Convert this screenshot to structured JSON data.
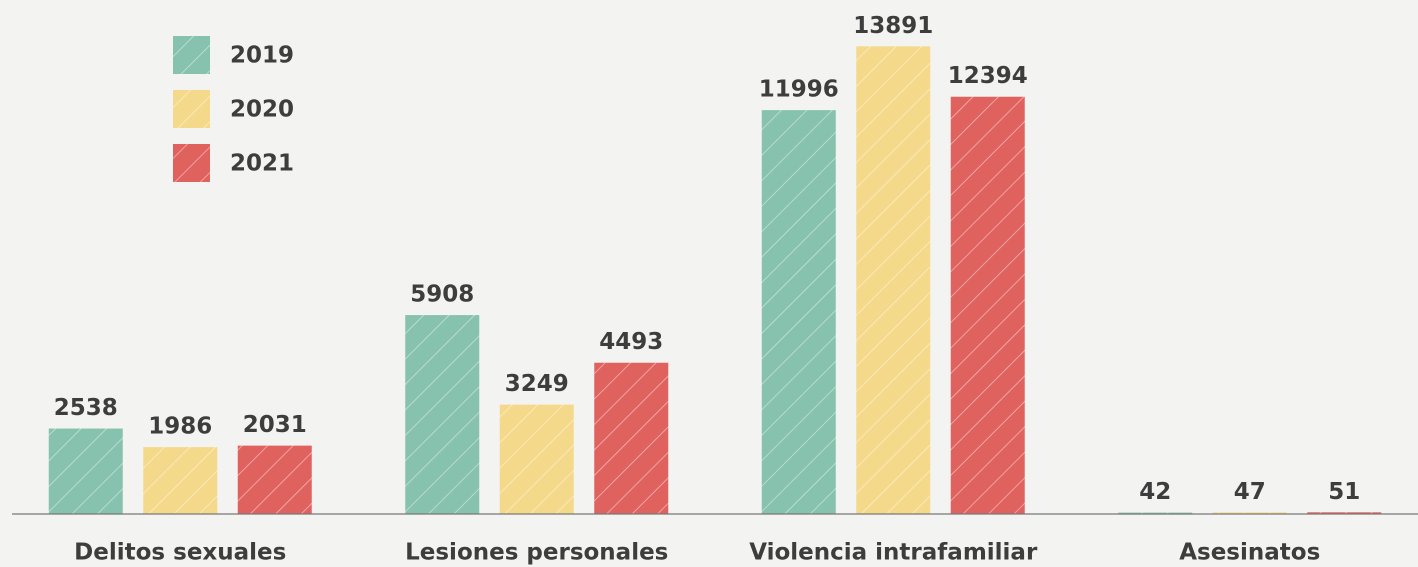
{
  "chart_data": {
    "type": "bar",
    "categories": [
      "Delitos sexuales",
      "Lesiones personales",
      "Violencia intrafamiliar",
      "Asesinatos"
    ],
    "series": [
      {
        "name": "2019",
        "color": "#86c2ad",
        "values": [
          2538,
          5908,
          11996,
          42
        ]
      },
      {
        "name": "2020",
        "color": "#f5d98a",
        "values": [
          1986,
          3249,
          13891,
          47
        ]
      },
      {
        "name": "2021",
        "color": "#e0625f",
        "values": [
          2031,
          4493,
          12394,
          51
        ]
      }
    ],
    "ylim": [
      0,
      15000
    ],
    "legend": "top-left",
    "hatch": true
  }
}
